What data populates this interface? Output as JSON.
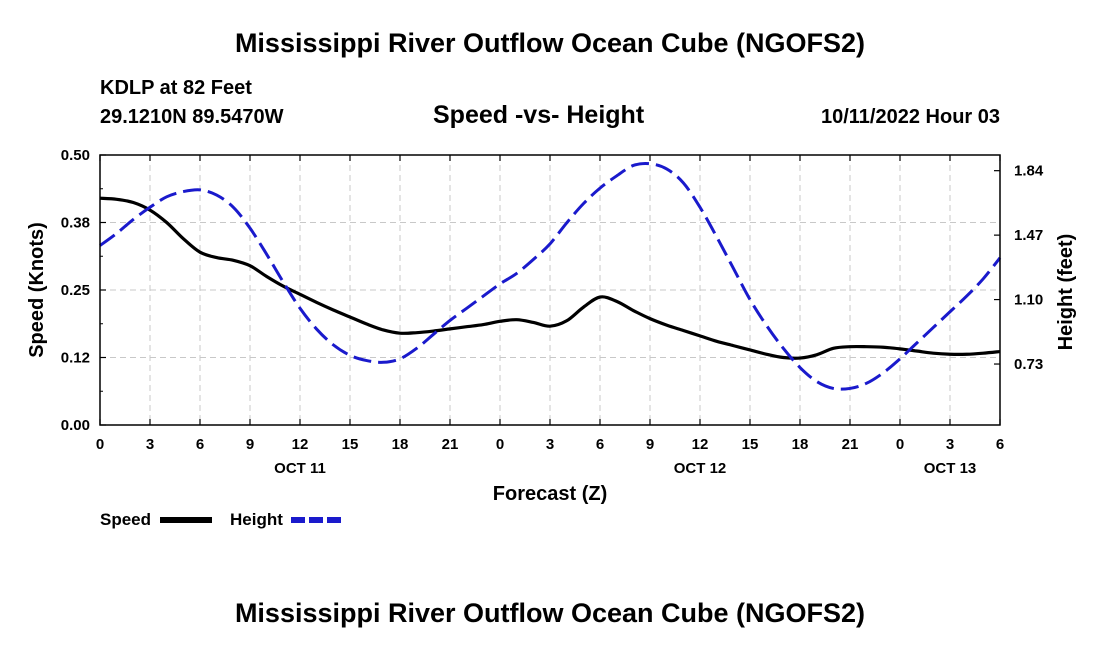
{
  "header": {
    "title": "Mississippi River Outflow Ocean Cube (NGOFS2)",
    "station": "KDLP at 82 Feet",
    "coordinates": "29.1210N  89.5470W",
    "datetime": "10/11/2022 Hour 03"
  },
  "footer": {
    "title": "Mississippi River Outflow Ocean Cube (NGOFS2)"
  },
  "colors": {
    "speed": "#000000",
    "height": "#1a1acc",
    "grid": "#c8c8c8"
  },
  "chart_data": {
    "type": "line",
    "title": "Speed -vs- Height",
    "xlabel": "Forecast (Z)",
    "ylabel": "Speed (Knots)",
    "y2label": "Height (feet)",
    "xlim": [
      0,
      54
    ],
    "ylim": [
      0,
      0.5
    ],
    "y2lim": [
      0.38,
      1.93
    ],
    "x_ticks": [
      0,
      3,
      6,
      9,
      12,
      15,
      18,
      21,
      24,
      27,
      30,
      33,
      36,
      39,
      42,
      45,
      48,
      51,
      54
    ],
    "x_tick_labels": [
      "0",
      "3",
      "6",
      "9",
      "12",
      "15",
      "18",
      "21",
      "0",
      "3",
      "6",
      "9",
      "12",
      "15",
      "18",
      "21",
      "0",
      "3",
      "6"
    ],
    "x_day_labels": [
      {
        "x": 12,
        "label": "OCT 11"
      },
      {
        "x": 36,
        "label": "OCT 12"
      },
      {
        "x": 51,
        "label": "OCT 13"
      }
    ],
    "y_ticks": [
      0,
      0.125,
      0.25,
      0.375,
      0.5
    ],
    "y_tick_labels": [
      "0.00",
      "0.12",
      "0.25",
      "0.38",
      "0.50"
    ],
    "y2_ticks": [
      0.73,
      1.1,
      1.47,
      1.84
    ],
    "y2_tick_labels": [
      "0.73",
      "1.10",
      "1.47",
      "1.84"
    ],
    "grid": true,
    "legend_position": "bottom-left",
    "series": [
      {
        "name": "Speed",
        "axis": "left",
        "style": "solid",
        "x": [
          0,
          1,
          2,
          3,
          4,
          5,
          6,
          7,
          8,
          9,
          10,
          11,
          12,
          13,
          14,
          15,
          16,
          17,
          18,
          19,
          20,
          21,
          22,
          23,
          24,
          25,
          26,
          27,
          28,
          29,
          30,
          31,
          32,
          33,
          34,
          35,
          36,
          37,
          38,
          39,
          40,
          41,
          42,
          43,
          44,
          45,
          46,
          47,
          48,
          49,
          50,
          51,
          52,
          53,
          54
        ],
        "values": [
          0.42,
          0.418,
          0.412,
          0.398,
          0.375,
          0.345,
          0.32,
          0.31,
          0.305,
          0.295,
          0.275,
          0.257,
          0.242,
          0.227,
          0.213,
          0.2,
          0.187,
          0.176,
          0.17,
          0.171,
          0.174,
          0.178,
          0.182,
          0.186,
          0.192,
          0.195,
          0.19,
          0.183,
          0.193,
          0.218,
          0.237,
          0.229,
          0.212,
          0.197,
          0.185,
          0.175,
          0.165,
          0.155,
          0.147,
          0.139,
          0.131,
          0.125,
          0.124,
          0.13,
          0.142,
          0.145,
          0.145,
          0.144,
          0.141,
          0.137,
          0.133,
          0.131,
          0.131,
          0.133,
          0.136
        ]
      },
      {
        "name": "Height",
        "axis": "right",
        "style": "dashed",
        "x": [
          0,
          1,
          2,
          3,
          4,
          5,
          6,
          7,
          8,
          9,
          10,
          11,
          12,
          13,
          14,
          15,
          16,
          17,
          18,
          19,
          20,
          21,
          22,
          23,
          24,
          25,
          26,
          27,
          28,
          29,
          30,
          31,
          32,
          33,
          34,
          35,
          36,
          37,
          38,
          39,
          40,
          41,
          42,
          43,
          44,
          45,
          46,
          47,
          48,
          49,
          50,
          51,
          52,
          53,
          54
        ],
        "values": [
          1.41,
          1.48,
          1.56,
          1.63,
          1.69,
          1.72,
          1.73,
          1.7,
          1.63,
          1.51,
          1.36,
          1.2,
          1.05,
          0.93,
          0.84,
          0.78,
          0.75,
          0.74,
          0.76,
          0.82,
          0.9,
          0.98,
          1.05,
          1.12,
          1.19,
          1.25,
          1.33,
          1.42,
          1.54,
          1.65,
          1.74,
          1.81,
          1.87,
          1.88,
          1.85,
          1.77,
          1.63,
          1.46,
          1.28,
          1.1,
          0.95,
          0.82,
          0.71,
          0.63,
          0.59,
          0.59,
          0.62,
          0.68,
          0.76,
          0.85,
          0.94,
          1.03,
          1.12,
          1.22,
          1.34
        ]
      }
    ]
  }
}
